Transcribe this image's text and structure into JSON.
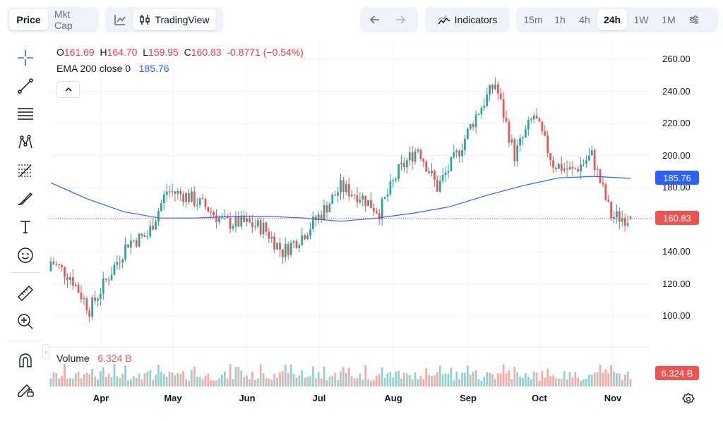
{
  "toolbar": {
    "price_label": "Price",
    "mktcap_label": "Mkt Cap",
    "tradingview_label": "TradingView",
    "indicators_label": "Indicators",
    "timeframes": [
      "15m",
      "1h",
      "4h",
      "24h",
      "1W",
      "1M"
    ],
    "active_timeframe": "24h"
  },
  "legend": {
    "o_label": "O",
    "o_value": "161.69",
    "h_label": "H",
    "h_value": "164.70",
    "l_label": "L",
    "l_value": "159.95",
    "c_label": "C",
    "c_value": "160.83",
    "change": "-0.8771 (−0.54%)",
    "ema_label": "EMA 200 close 0",
    "ema_value": "185.76"
  },
  "volume": {
    "label": "Volume",
    "value": "6.324 B"
  },
  "price_tags": {
    "ema": "185.76",
    "last": "160.83",
    "volume": "6.324 B"
  },
  "colors": {
    "up": "#26a69a",
    "down": "#ef5350",
    "ema": "#2962ff",
    "text": "#131722"
  },
  "chart_data": {
    "type": "line",
    "title": "",
    "y_axis_ticks": [
      "260.00",
      "240.00",
      "220.00",
      "200.00",
      "180.00",
      "160.00",
      "140.00",
      "120.00",
      "100.00"
    ],
    "x_axis_ticks": [
      "Apr",
      "May",
      "Jun",
      "Jul",
      "Aug",
      "Sep",
      "Oct",
      "Nov"
    ],
    "ylim": [
      90,
      265
    ],
    "series": [
      {
        "name": "EMA 200 close 0",
        "type": "line",
        "x": [
          "Mar 15",
          "Apr 1",
          "Apr 15",
          "May 1",
          "May 15",
          "Jun 1",
          "Jun 15",
          "Jul 1",
          "Jul 15",
          "Aug 1",
          "Aug 15",
          "Sep 1",
          "Sep 15",
          "Oct 1",
          "Oct 15",
          "Nov 1",
          "Nov 7"
        ],
        "values": [
          183,
          173,
          165,
          161,
          161,
          162,
          162,
          161,
          159,
          161,
          164,
          168,
          175,
          181,
          186,
          187,
          185.76
        ]
      },
      {
        "name": "Price",
        "type": "candlestick",
        "x": [
          "Mar 15",
          "Apr 1",
          "Apr 8",
          "Apr 15",
          "Apr 22",
          "May 1",
          "May 8",
          "May 15",
          "May 22",
          "Jun 1",
          "Jun 8",
          "Jun 15",
          "Jun 22",
          "Jul 1",
          "Jul 8",
          "Jul 15",
          "Jul 22",
          "Aug 1",
          "Aug 8",
          "Aug 15",
          "Aug 22",
          "Sep 1",
          "Sep 8",
          "Sep 15",
          "Sep 22",
          "Oct 1",
          "Oct 8",
          "Oct 15",
          "Oct 22",
          "Nov 1",
          "Nov 7"
        ],
        "open": [
          128,
          134,
          125,
          104,
          125,
          146,
          150,
          178,
          175,
          168,
          158,
          158,
          155,
          140,
          150,
          164,
          180,
          175,
          165,
          190,
          205,
          180,
          200,
          225,
          245,
          200,
          225,
          195,
          190,
          200,
          162
        ],
        "close": [
          134,
          125,
          104,
          125,
          146,
          150,
          178,
          175,
          168,
          158,
          158,
          155,
          140,
          150,
          164,
          180,
          175,
          165,
          190,
          205,
          180,
          200,
          225,
          245,
          200,
          225,
          195,
          190,
          200,
          162,
          160.83
        ],
        "high": [
          137,
          138,
          128,
          128,
          148,
          153,
          186,
          182,
          178,
          172,
          175,
          165,
          160,
          152,
          166,
          205,
          185,
          178,
          193,
          212,
          210,
          205,
          232,
          253,
          248,
          235,
          228,
          202,
          205,
          203,
          164.7
        ],
        "low": [
          120,
          122,
          98,
          100,
          120,
          143,
          148,
          170,
          165,
          155,
          145,
          150,
          127,
          135,
          146,
          160,
          170,
          155,
          160,
          185,
          175,
          176,
          195,
          220,
          190,
          195,
          175,
          175,
          185,
          147,
          159.95
        ]
      }
    ],
    "volume_label": "Volume",
    "volume_last": "6.324 B"
  }
}
